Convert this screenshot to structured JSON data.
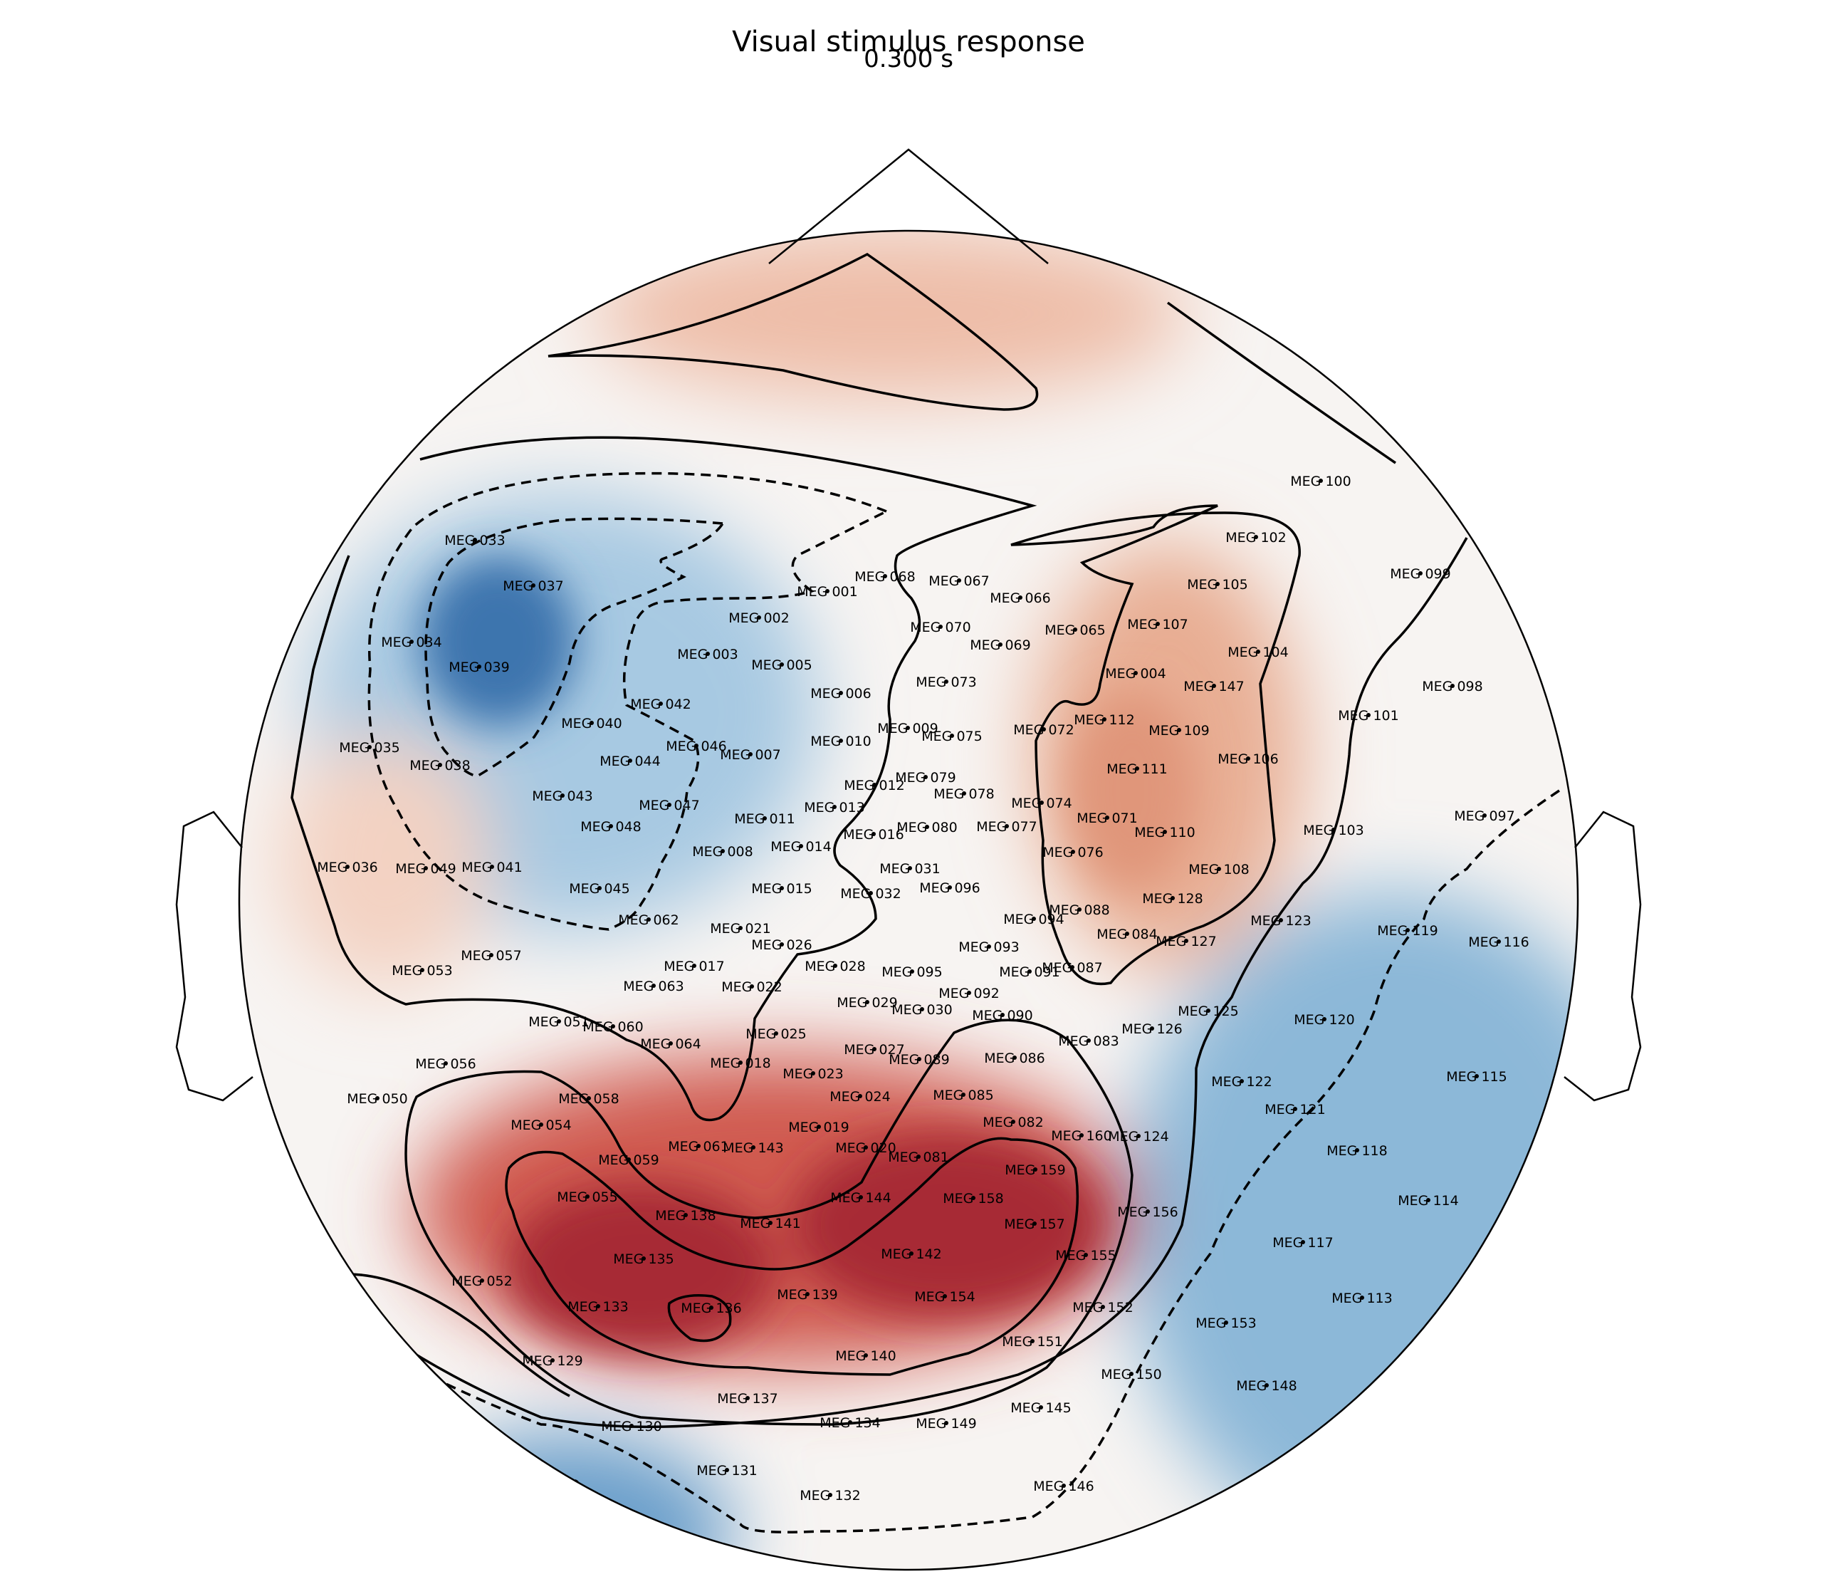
{
  "chart_data": {
    "type": "heatmap",
    "subtype": "MEG sensor topomap",
    "title": "Visual stimulus response",
    "subtitle": "0.300 s",
    "colormap": "RdBu_r (red = positive, blue = negative)",
    "colors": {
      "strong_negative": "#2f6aaa",
      "negative": "#8fbcdc",
      "neutral": "#f7f7f7",
      "positive": "#e6a58a",
      "strong_positive": "#9e1f2c",
      "contour": "#000000"
    },
    "contour_styles": {
      "negative": "dashed",
      "positive": "solid"
    },
    "sensor_labels": [
      "MEG 001",
      "MEG 002",
      "MEG 003",
      "MEG 004",
      "MEG 005",
      "MEG 006",
      "MEG 007",
      "MEG 008",
      "MEG 009",
      "MEG 010",
      "MEG 011",
      "MEG 012",
      "MEG 013",
      "MEG 014",
      "MEG 015",
      "MEG 016",
      "MEG 017",
      "MEG 018",
      "MEG 019",
      "MEG 020",
      "MEG 021",
      "MEG 022",
      "MEG 023",
      "MEG 024",
      "MEG 025",
      "MEG 026",
      "MEG 027",
      "MEG 028",
      "MEG 029",
      "MEG 030",
      "MEG 031",
      "MEG 032",
      "MEG 033",
      "MEG 034",
      "MEG 035",
      "MEG 036",
      "MEG 037",
      "MEG 038",
      "MEG 039",
      "MEG 040",
      "MEG 041",
      "MEG 042",
      "MEG 043",
      "MEG 044",
      "MEG 045",
      "MEG 046",
      "MEG 047",
      "MEG 048",
      "MEG 049",
      "MEG 050",
      "MEG 051",
      "MEG 052",
      "MEG 053",
      "MEG 054",
      "MEG 055",
      "MEG 056",
      "MEG 057",
      "MEG 058",
      "MEG 059",
      "MEG 060",
      "MEG 061",
      "MEG 062",
      "MEG 063",
      "MEG 064",
      "MEG 065",
      "MEG 066",
      "MEG 067",
      "MEG 068",
      "MEG 069",
      "MEG 070",
      "MEG 071",
      "MEG 072",
      "MEG 073",
      "MEG 074",
      "MEG 075",
      "MEG 076",
      "MEG 077",
      "MEG 078",
      "MEG 079",
      "MEG 080",
      "MEG 081",
      "MEG 082",
      "MEG 083",
      "MEG 084",
      "MEG 085",
      "MEG 086",
      "MEG 087",
      "MEG 088",
      "MEG 089",
      "MEG 090",
      "MEG 091",
      "MEG 092",
      "MEG 093",
      "MEG 094",
      "MEG 095",
      "MEG 096",
      "MEG 097",
      "MEG 098",
      "MEG 099",
      "MEG 100",
      "MEG 101",
      "MEG 102",
      "MEG 103",
      "MEG 104",
      "MEG 105",
      "MEG 106",
      "MEG 107",
      "MEG 108",
      "MEG 109",
      "MEG 110",
      "MEG 111",
      "MEG 112",
      "MEG 113",
      "MEG 114",
      "MEG 115",
      "MEG 116",
      "MEG 117",
      "MEG 118",
      "MEG 119",
      "MEG 120",
      "MEG 121",
      "MEG 122",
      "MEG 123",
      "MEG 124",
      "MEG 125",
      "MEG 126",
      "MEG 127",
      "MEG 128",
      "MEG 129",
      "MEG 130",
      "MEG 131",
      "MEG 132",
      "MEG 133",
      "MEG 134",
      "MEG 135",
      "MEG 136",
      "MEG 137",
      "MEG 138",
      "MEG 139",
      "MEG 140",
      "MEG 141",
      "MEG 142",
      "MEG 143",
      "MEG 144",
      "MEG 145",
      "MEG 146",
      "MEG 147",
      "MEG 148",
      "MEG 149",
      "MEG 150",
      "MEG 151",
      "MEG 152",
      "MEG 153",
      "MEG 154",
      "MEG 155",
      "MEG 156",
      "MEG 157",
      "MEG 158",
      "MEG 159",
      "MEG 160"
    ]
  }
}
